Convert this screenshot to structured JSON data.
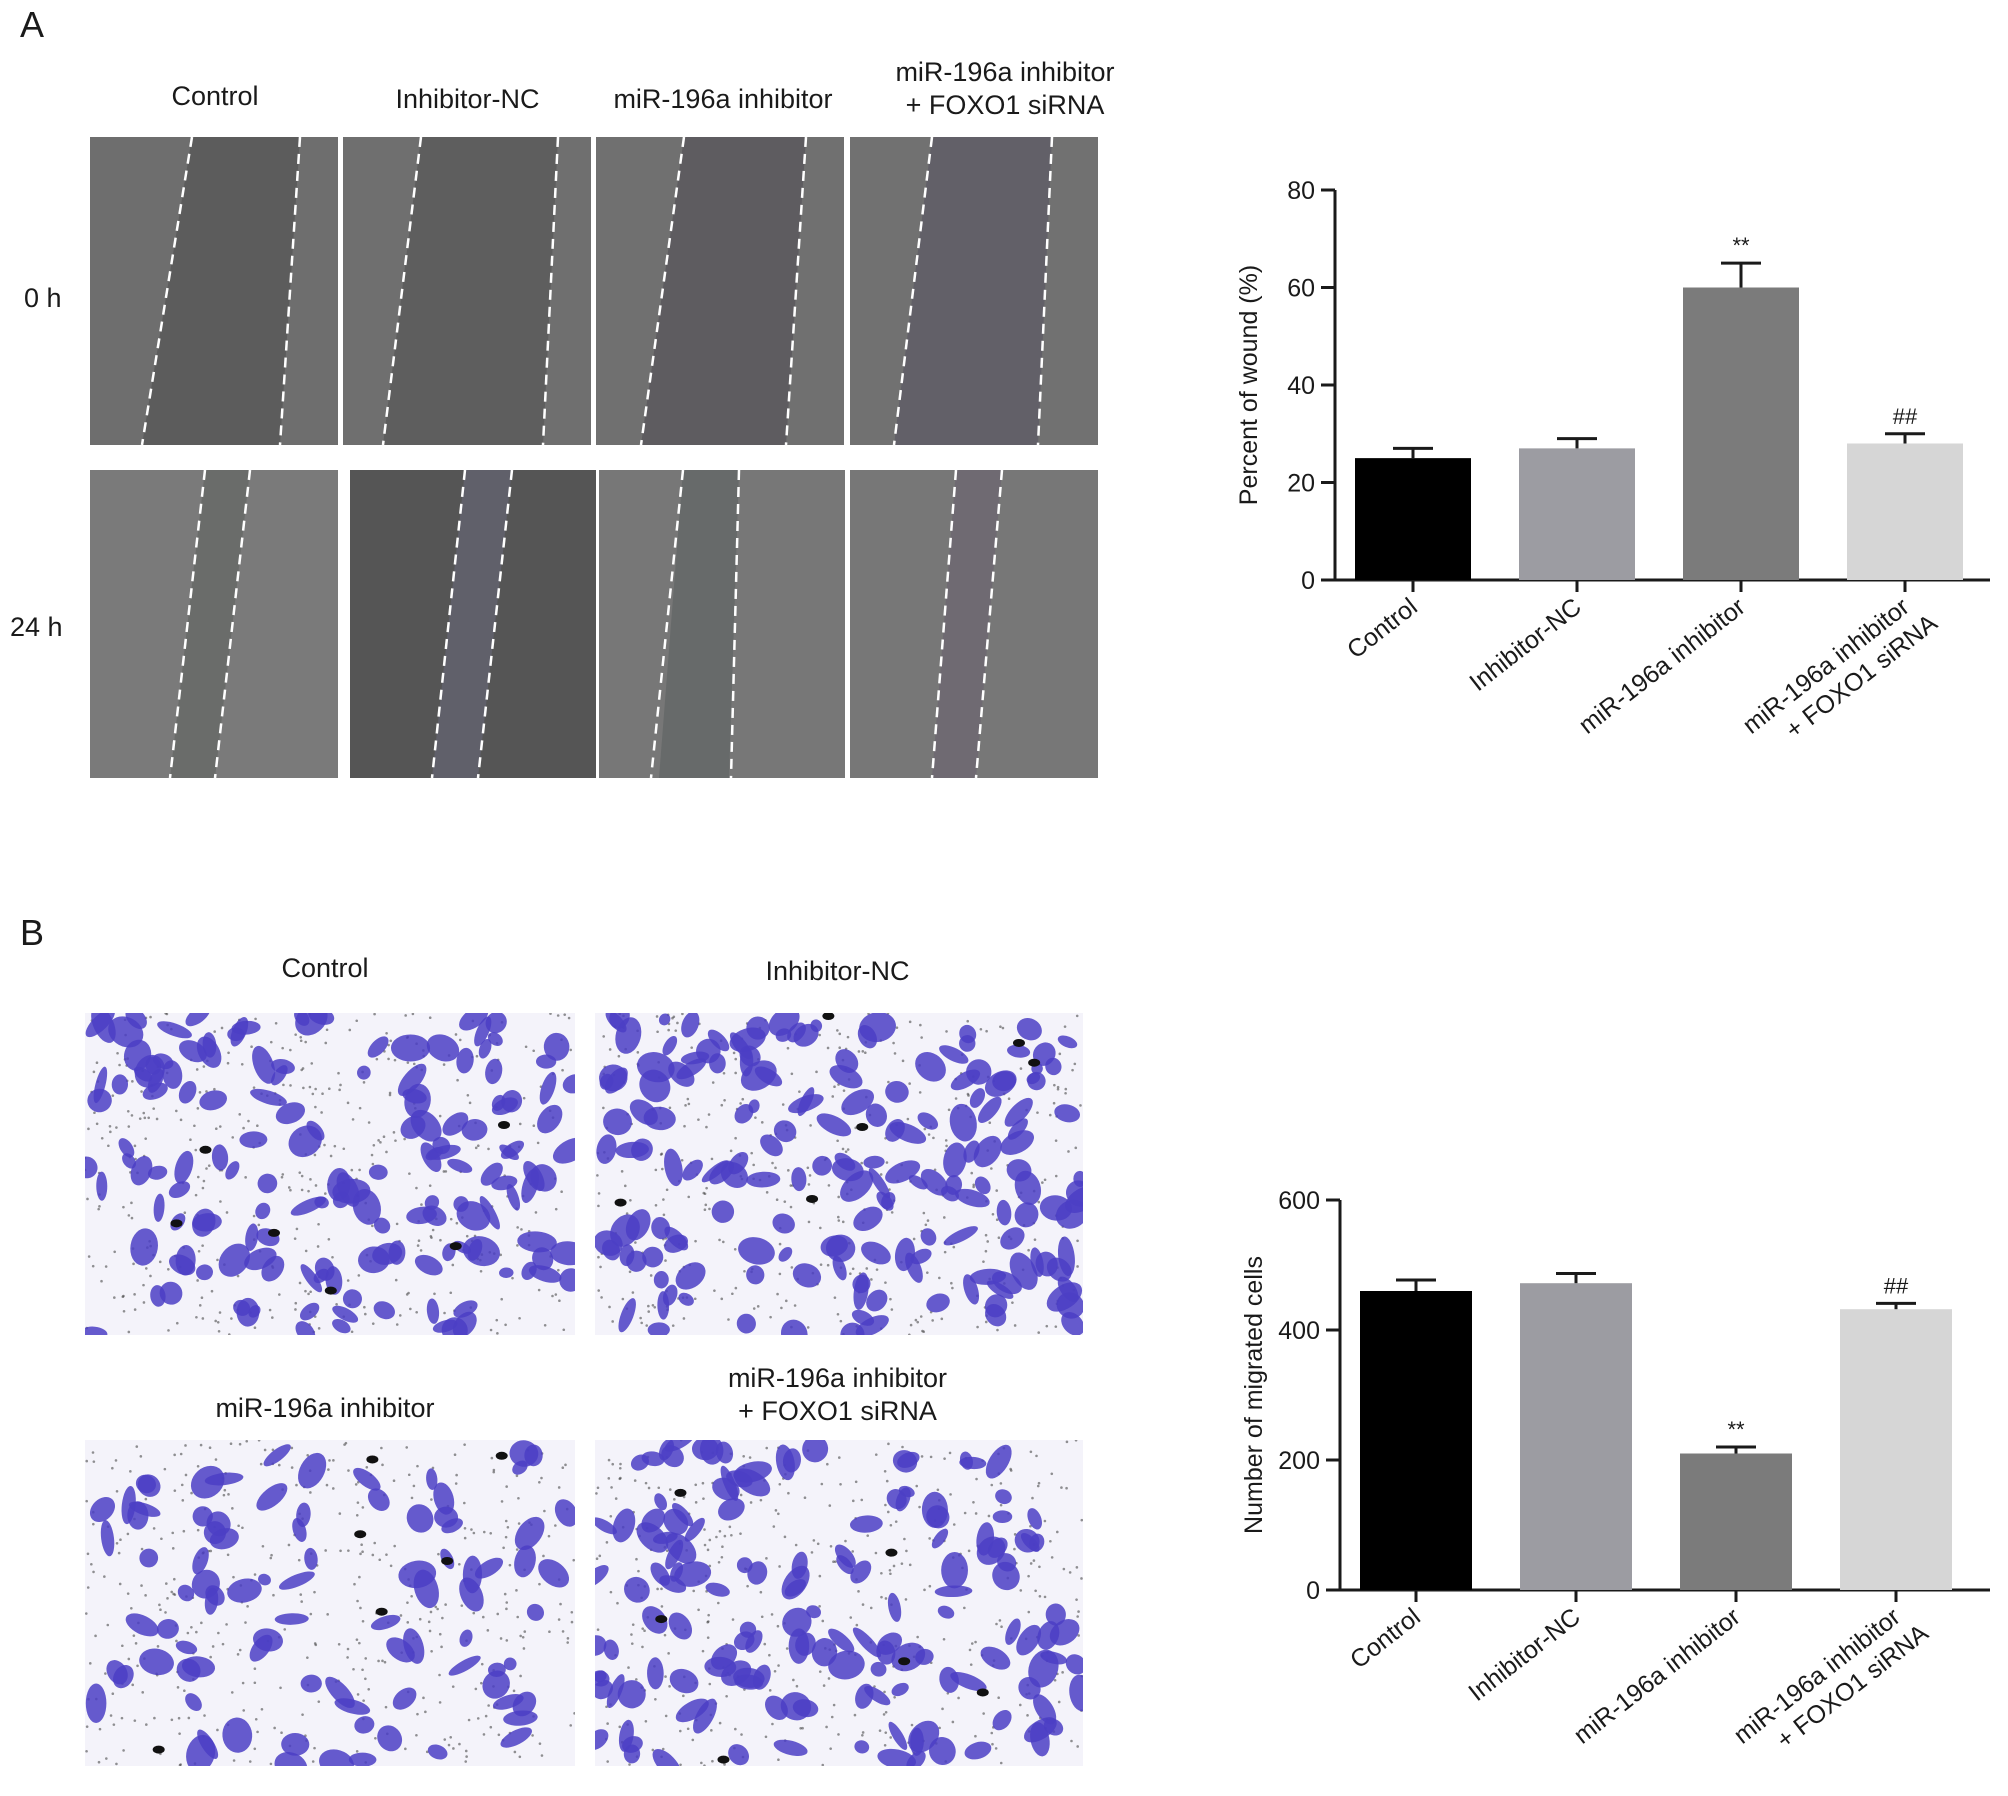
{
  "panels": {
    "a": {
      "letter": "A",
      "columns": [
        "Control",
        "Inhibitor-NC",
        "miR-196a inhibitor",
        "miR-196a inhibitor\n+ FOXO1 siRNA"
      ],
      "rows": [
        "0 h",
        "24 h"
      ]
    },
    "b": {
      "letter": "B",
      "images": [
        "Control",
        "Inhibitor-NC",
        "miR-196a inhibitor",
        "miR-196a inhibitor\n+ FOXO1 siRNA"
      ]
    }
  },
  "chart_data": [
    {
      "type": "bar",
      "categories": [
        "Control",
        "Inhibitor-NC",
        "miR-196a inhibitor",
        "miR-196a inhibitor\n+ FOXO1 siRNA"
      ],
      "values": [
        25,
        27,
        60,
        28
      ],
      "errors": [
        2,
        2,
        5,
        2
      ],
      "annotations": [
        "",
        "",
        "**",
        "##"
      ],
      "colors": [
        "#000000",
        "#9c9ca2",
        "#7b7b7b",
        "#d6d6d6"
      ],
      "ylabel": "Percent of wound (%)",
      "ylim": [
        0,
        80
      ],
      "yticks": [
        0,
        20,
        40,
        60,
        80
      ]
    },
    {
      "type": "bar",
      "categories": [
        "Control",
        "Inhibitor-NC",
        "miR-196a inhibitor",
        "miR-196a inhibitor\n+ FOXO1 siRNA"
      ],
      "values": [
        460,
        472,
        210,
        432
      ],
      "errors": [
        17,
        15,
        10,
        9
      ],
      "annotations": [
        "",
        "",
        "**",
        "##"
      ],
      "colors": [
        "#000000",
        "#9c9ca2",
        "#7b7b7b",
        "#d6d6d6"
      ],
      "ylabel": "Number of migrated cells",
      "ylim": [
        0,
        600
      ],
      "yticks": [
        0,
        200,
        400,
        600
      ]
    }
  ]
}
